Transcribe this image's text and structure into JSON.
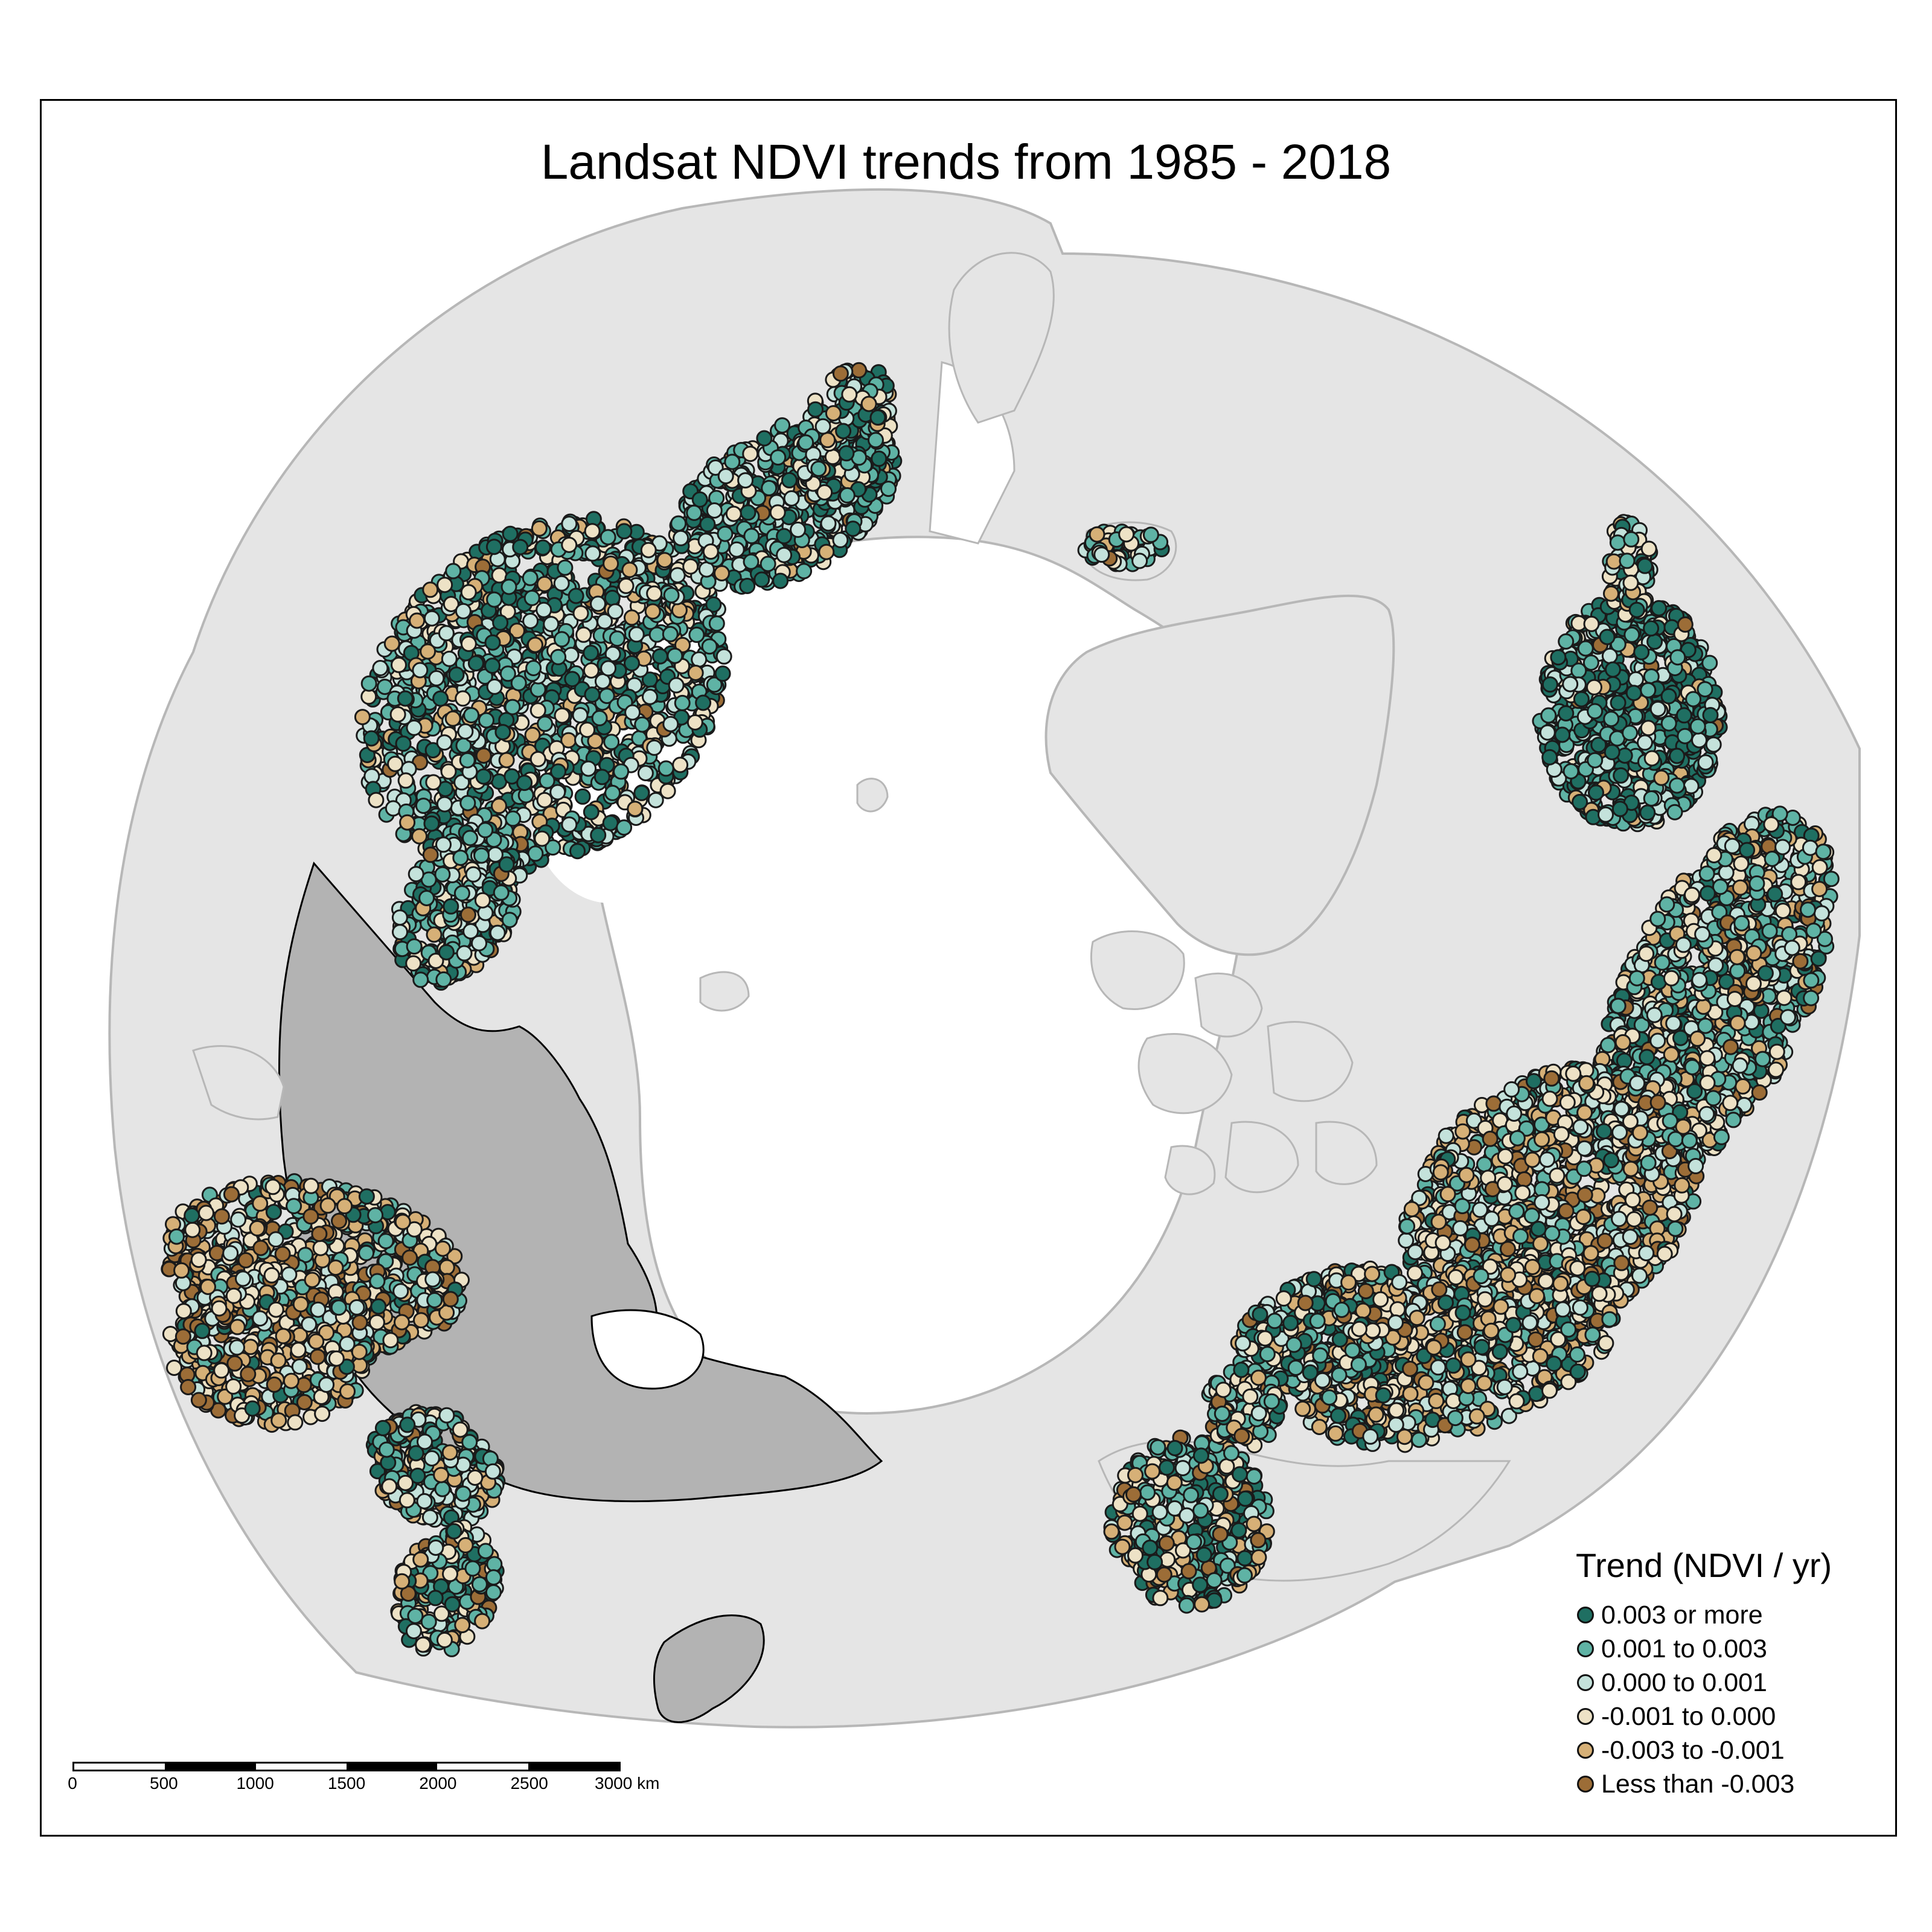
{
  "map": {
    "title": "Landsat NDVI trends from 1985 - 2018",
    "legend": {
      "title": "Trend (NDVI / yr)",
      "items": [
        {
          "label": "0.003 or more",
          "color": "#1f6f62"
        },
        {
          "label": "0.001 to 0.003",
          "color": "#5fb3a5"
        },
        {
          "label": "0.000 to 0.001",
          "color": "#c4e2db"
        },
        {
          "label": "-0.001 to 0.000",
          "color": "#ede2c6"
        },
        {
          "label": "-0.003 to -0.001",
          "color": "#d6b077"
        },
        {
          "label": "Less than -0.003",
          "color": "#9c6d37"
        }
      ]
    },
    "scale_bar": {
      "ticks": [
        "0",
        "500",
        "1000",
        "1500",
        "2000",
        "2500",
        "3000 km"
      ]
    },
    "colors": {
      "land": "#e5e5e5",
      "land_outline": "#b7b7b7",
      "highlight_region": "#b3b3b3",
      "ocean": "#ffffff"
    }
  }
}
